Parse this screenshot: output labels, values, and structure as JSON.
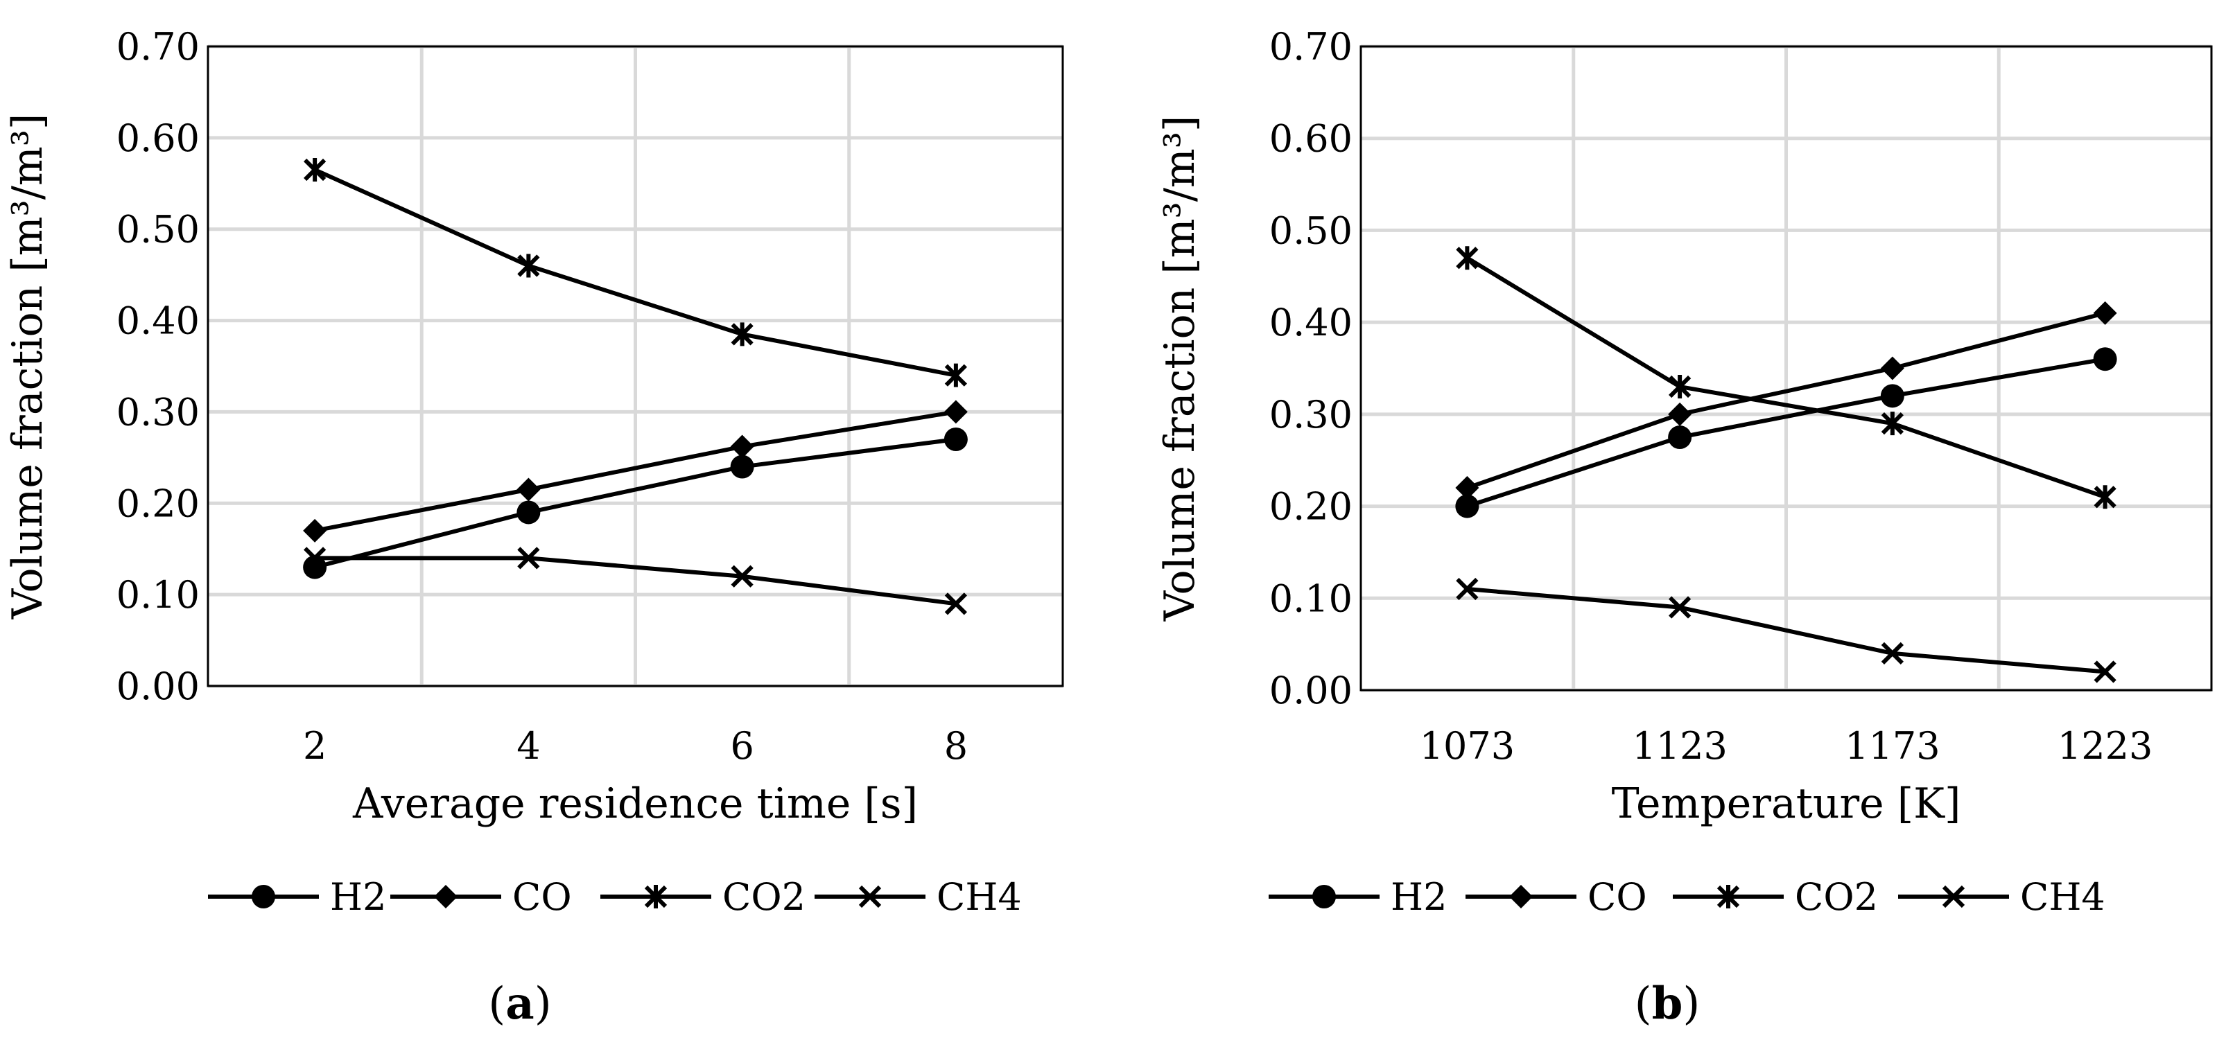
{
  "chart_data": [
    {
      "type": "line",
      "caption": "a",
      "title": "",
      "xlabel": "Average residence time [s]",
      "ylabel": "Volume fraction [m³/m³]",
      "categories": [
        "2",
        "4",
        "6",
        "8"
      ],
      "ylim": [
        0,
        0.7
      ],
      "yticks": [
        "0.00",
        "0.10",
        "0.20",
        "0.30",
        "0.40",
        "0.50",
        "0.60",
        "0.70"
      ],
      "grid": true,
      "legend_position": "bottom",
      "series": [
        {
          "name": "H2",
          "marker": "circle",
          "values": [
            0.13,
            0.19,
            0.24,
            0.27
          ]
        },
        {
          "name": "CO",
          "marker": "diamond",
          "values": [
            0.17,
            0.215,
            0.262,
            0.3
          ]
        },
        {
          "name": "CO2",
          "marker": "asterisk",
          "values": [
            0.565,
            0.46,
            0.385,
            0.34
          ]
        },
        {
          "name": "CH4",
          "marker": "x",
          "values": [
            0.14,
            0.14,
            0.12,
            0.09
          ]
        }
      ]
    },
    {
      "type": "line",
      "caption": "b",
      "title": "",
      "xlabel": "Temperature [K]",
      "ylabel": "Volume fraction [m³/m³]",
      "categories": [
        "1073",
        "1123",
        "1173",
        "1223"
      ],
      "ylim": [
        0,
        0.7
      ],
      "yticks": [
        "0.00",
        "0.10",
        "0.20",
        "0.30",
        "0.40",
        "0.50",
        "0.60",
        "0.70"
      ],
      "grid": true,
      "legend_position": "bottom",
      "series": [
        {
          "name": "H2",
          "marker": "circle",
          "values": [
            0.2,
            0.275,
            0.32,
            0.36
          ]
        },
        {
          "name": "CO",
          "marker": "diamond",
          "values": [
            0.22,
            0.3,
            0.35,
            0.41
          ]
        },
        {
          "name": "CO2",
          "marker": "asterisk",
          "values": [
            0.47,
            0.33,
            0.29,
            0.21
          ]
        },
        {
          "name": "CH4",
          "marker": "x",
          "values": [
            0.11,
            0.09,
            0.04,
            0.02
          ]
        }
      ]
    }
  ]
}
